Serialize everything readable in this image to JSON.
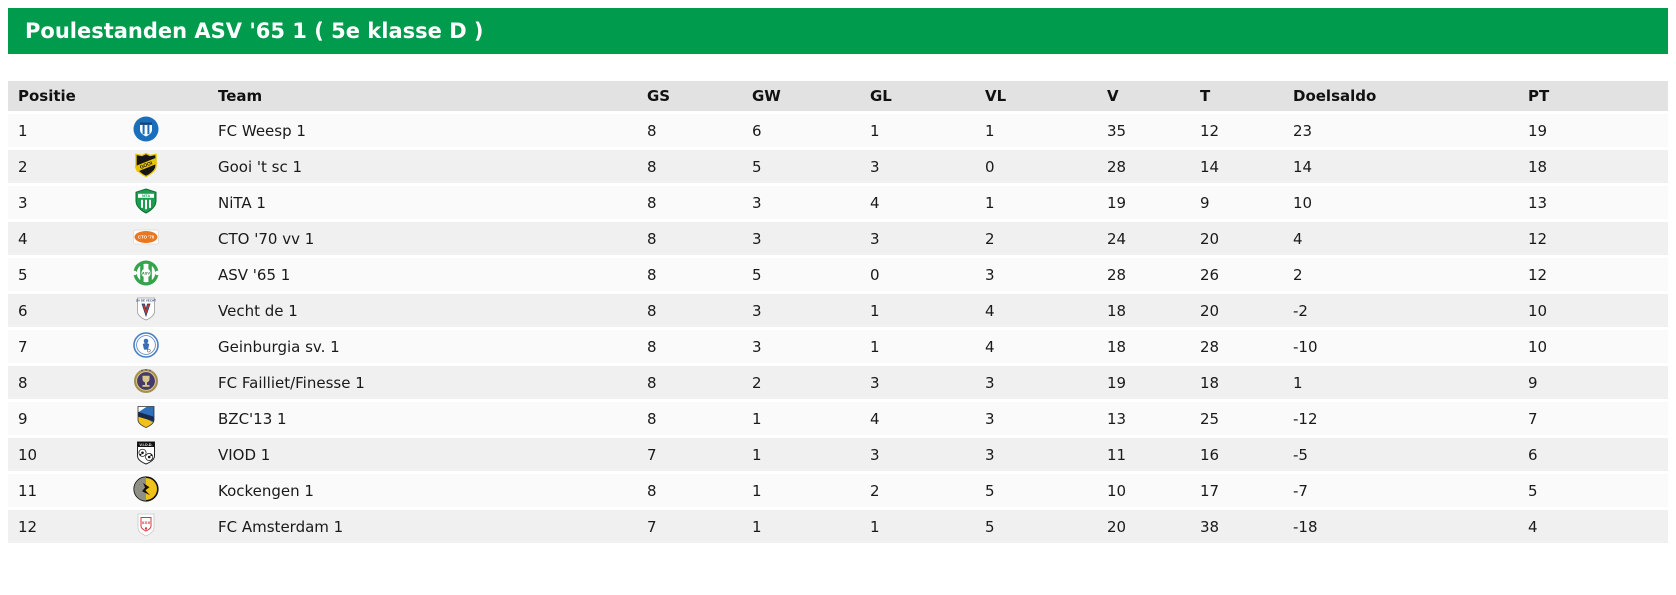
{
  "title": "Poulestanden ASV '65 1 ( 5e klasse D )",
  "colors": {
    "header_green": "#009b4c",
    "column_header_bg": "#e2e2e2",
    "row_odd": "#fafafa",
    "row_even": "#f0f0f0"
  },
  "table": {
    "columns": [
      "Positie",
      "Team",
      "GS",
      "GW",
      "GL",
      "VL",
      "V",
      "T",
      "Doelsaldo",
      "PT"
    ],
    "rows": [
      {
        "positie": "1",
        "logo": "fc-weesp-logo-icon",
        "team": "FC Weesp 1",
        "gs": "8",
        "gw": "6",
        "gl": "1",
        "vl": "1",
        "v": "35",
        "t": "12",
        "doelsaldo": "23",
        "pt": "19"
      },
      {
        "positie": "2",
        "logo": "gooi-t-sc-logo-icon",
        "team": "Gooi 't sc 1",
        "gs": "8",
        "gw": "5",
        "gl": "3",
        "vl": "0",
        "v": "28",
        "t": "14",
        "doelsaldo": "14",
        "pt": "18"
      },
      {
        "positie": "3",
        "logo": "nita-logo-icon",
        "team": "NiTA 1",
        "gs": "8",
        "gw": "3",
        "gl": "4",
        "vl": "1",
        "v": "19",
        "t": "9",
        "doelsaldo": "10",
        "pt": "13"
      },
      {
        "positie": "4",
        "logo": "cto-70-logo-icon",
        "team": "CTO '70 vv 1",
        "gs": "8",
        "gw": "3",
        "gl": "3",
        "vl": "2",
        "v": "24",
        "t": "20",
        "doelsaldo": "4",
        "pt": "12"
      },
      {
        "positie": "5",
        "logo": "asv-65-logo-icon",
        "team": "ASV '65 1",
        "gs": "8",
        "gw": "5",
        "gl": "0",
        "vl": "3",
        "v": "28",
        "t": "26",
        "doelsaldo": "2",
        "pt": "12"
      },
      {
        "positie": "6",
        "logo": "vecht-de-logo-icon",
        "team": "Vecht de 1",
        "gs": "8",
        "gw": "3",
        "gl": "1",
        "vl": "4",
        "v": "18",
        "t": "20",
        "doelsaldo": "-2",
        "pt": "10"
      },
      {
        "positie": "7",
        "logo": "geinburgia-logo-icon",
        "team": "Geinburgia sv. 1",
        "gs": "8",
        "gw": "3",
        "gl": "1",
        "vl": "4",
        "v": "18",
        "t": "28",
        "doelsaldo": "-10",
        "pt": "10"
      },
      {
        "positie": "8",
        "logo": "fc-failliet-finesse-logo-icon",
        "team": "FC Failliet/Finesse 1",
        "gs": "8",
        "gw": "2",
        "gl": "3",
        "vl": "3",
        "v": "19",
        "t": "18",
        "doelsaldo": "1",
        "pt": "9"
      },
      {
        "positie": "9",
        "logo": "bzc-13-logo-icon",
        "team": "BZC'13 1",
        "gs": "8",
        "gw": "1",
        "gl": "4",
        "vl": "3",
        "v": "13",
        "t": "25",
        "doelsaldo": "-12",
        "pt": "7"
      },
      {
        "positie": "10",
        "logo": "viod-logo-icon",
        "team": "VIOD 1",
        "gs": "7",
        "gw": "1",
        "gl": "3",
        "vl": "3",
        "v": "11",
        "t": "16",
        "doelsaldo": "-5",
        "pt": "6"
      },
      {
        "positie": "11",
        "logo": "kockengen-logo-icon",
        "team": "Kockengen 1",
        "gs": "8",
        "gw": "1",
        "gl": "2",
        "vl": "5",
        "v": "10",
        "t": "17",
        "doelsaldo": "-7",
        "pt": "5"
      },
      {
        "positie": "12",
        "logo": "fc-amsterdam-logo-icon",
        "team": "FC Amsterdam 1",
        "gs": "7",
        "gw": "1",
        "gl": "1",
        "vl": "5",
        "v": "20",
        "t": "38",
        "doelsaldo": "-18",
        "pt": "4"
      }
    ]
  }
}
